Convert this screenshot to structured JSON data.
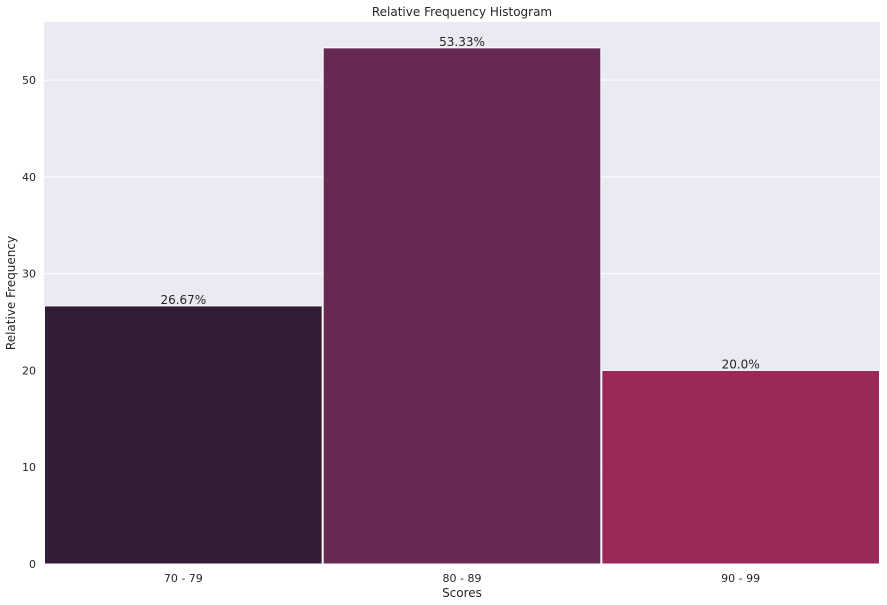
{
  "chart_data": {
    "type": "bar",
    "title": "Relative Frequency Histogram",
    "xlabel": "Scores",
    "ylabel": "Relative Frequency",
    "categories": [
      "70 - 79",
      "80 - 89",
      "90 - 99"
    ],
    "values": [
      26.67,
      53.33,
      20.0
    ],
    "data_labels": [
      "26.67%",
      "53.33%",
      "20.0%"
    ],
    "bar_colors": [
      "#321d37",
      "#652952",
      "#9a295a"
    ],
    "ylim": [
      0,
      56
    ],
    "yticks": [
      0,
      10,
      20,
      30,
      40,
      50
    ],
    "ytick_labels": [
      "0",
      "10",
      "20",
      "30",
      "40",
      "50"
    ],
    "grid": true,
    "background": "#eaeaf2"
  }
}
